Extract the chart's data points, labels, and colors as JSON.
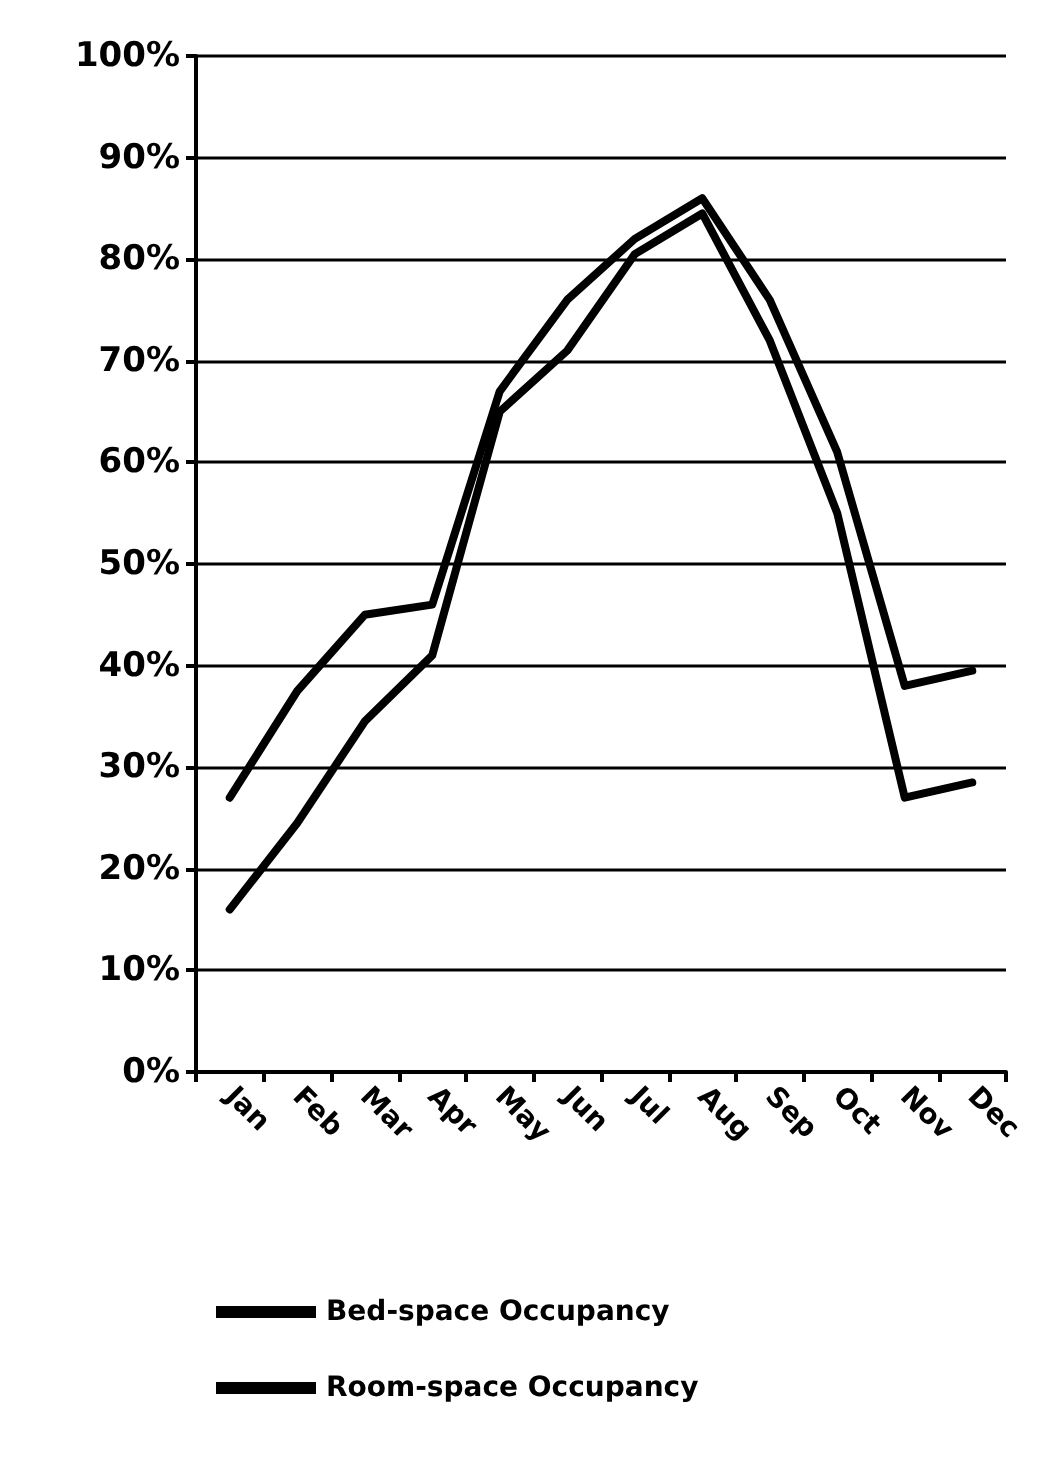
{
  "chart_data": {
    "type": "line",
    "categories": [
      "Jan",
      "Feb",
      "Mar",
      "Apr",
      "May",
      "Jun",
      "Jul",
      "Aug",
      "Sep",
      "Oct",
      "Nov",
      "Dec"
    ],
    "series": [
      {
        "name": "Bed-space Occupancy",
        "color": "#000000",
        "values": [
          16,
          24.5,
          34.5,
          41,
          65,
          71,
          80.5,
          84.5,
          72,
          55,
          27,
          28.5
        ]
      },
      {
        "name": "Room-space Occupancy",
        "color": "#000000",
        "values": [
          27,
          37.5,
          45,
          46,
          67,
          76,
          82,
          86,
          76,
          61,
          38,
          39.5
        ]
      }
    ],
    "ylim": [
      0,
      100
    ],
    "yticks": [
      {
        "value": 0,
        "label": "0%"
      },
      {
        "value": 10,
        "label": "10%"
      },
      {
        "value": 20,
        "label": "20%"
      },
      {
        "value": 30,
        "label": "30%"
      },
      {
        "value": 40,
        "label": "40%"
      },
      {
        "value": 50,
        "label": "50%"
      },
      {
        "value": 60,
        "label": "60%"
      },
      {
        "value": 70,
        "label": "70%"
      },
      {
        "value": 80,
        "label": "80%"
      },
      {
        "value": 90,
        "label": "90%"
      },
      {
        "value": 100,
        "label": "100%"
      }
    ],
    "grid": "y",
    "legend": "bottom",
    "marker": "none",
    "line_style": "solid"
  }
}
